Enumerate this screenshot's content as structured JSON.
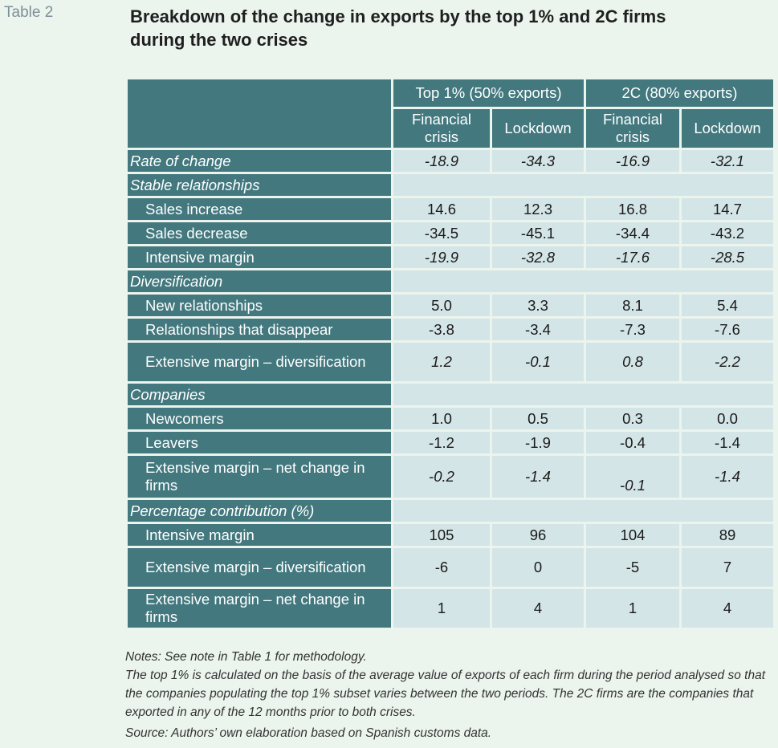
{
  "table_label": "Table 2",
  "title": "Breakdown of the change in exports by the top 1% and 2C firms during the two crises",
  "groups": [
    "Top 1% (50% exports)",
    "2C (80% exports)"
  ],
  "subheaders": [
    "Financial crisis",
    "Lockdown",
    "Financial crisis",
    "Lockdown"
  ],
  "rows": {
    "rate_of_change": {
      "label": "Rate of change",
      "values": [
        "-18.9",
        "-34.3",
        "-16.9",
        "-32.1"
      ]
    },
    "stable_relationships": {
      "label": "Stable relationships"
    },
    "sales_increase": {
      "label": "Sales increase",
      "values": [
        "14.6",
        "12.3",
        "16.8",
        "14.7"
      ]
    },
    "sales_decrease": {
      "label": "Sales decrease",
      "values": [
        "-34.5",
        "-45.1",
        "-34.4",
        "-43.2"
      ]
    },
    "intensive_margin": {
      "label": "Intensive margin",
      "values": [
        "-19.9",
        "-32.8",
        "-17.6",
        "-28.5"
      ]
    },
    "diversification": {
      "label": "Diversification"
    },
    "new_relationships": {
      "label": "New relationships",
      "values": [
        "5.0",
        "3.3",
        "8.1",
        "5.4"
      ]
    },
    "relationships_disappear": {
      "label": "Relationships that disappear",
      "values": [
        "-3.8",
        "-3.4",
        "-7.3",
        "-7.6"
      ]
    },
    "ext_margin_div": {
      "label": "Extensive margin – diversification",
      "values": [
        "1.2",
        "-0.1",
        "0.8",
        "-2.2"
      ]
    },
    "companies": {
      "label": "Companies"
    },
    "newcomers": {
      "label": "Newcomers",
      "values": [
        "1.0",
        "0.5",
        "0.3",
        "0.0"
      ]
    },
    "leavers": {
      "label": "Leavers",
      "values": [
        "-1.2",
        "-1.9",
        "-0.4",
        "-1.4"
      ]
    },
    "ext_margin_net": {
      "label": "Extensive margin – net change in firms",
      "values": [
        "-0.2",
        "-1.4",
        "-0.1",
        "-1.4"
      ]
    },
    "pct_contribution": {
      "label": "Percentage contribution (%)"
    },
    "pc_intensive": {
      "label": "Intensive margin",
      "values": [
        "105",
        "96",
        "104",
        "89"
      ]
    },
    "pc_ext_div": {
      "label": "Extensive margin – diversification",
      "values": [
        "-6",
        "0",
        "-5",
        "7"
      ]
    },
    "pc_ext_net": {
      "label": "Extensive margin – net change in firms",
      "values": [
        "1",
        "4",
        "1",
        "4"
      ]
    }
  },
  "notes": {
    "line1": "Notes: See note in Table 1 for methodology.",
    "line2": "The top 1% is calculated on the basis of the average value of exports of each firm during the period analysed so that the companies populating the top 1% subset varies between the two periods. The 2C firms are the companies that exported in any of the 12 months prior to both crises.",
    "source": "Source: Authors’ own elaboration based on Spanish customs data."
  }
}
